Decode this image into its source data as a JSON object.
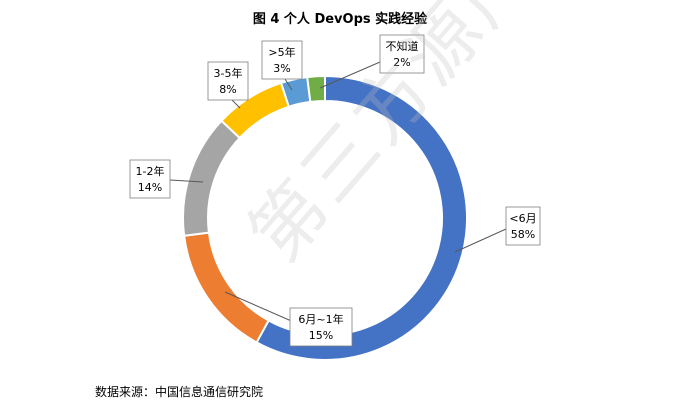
{
  "title": "图 4 个人 DevOps 实践经验",
  "source": "数据来源：中国信息通信研究院",
  "watermark": "第三方源产业联盟",
  "chart_data": {
    "type": "pie",
    "variant": "doughnut",
    "title": "图 4 个人 DevOps 实践经验",
    "categories": [
      "<6月",
      "6月~1年",
      "1-2年",
      "3-5年",
      ">5年",
      "不知道"
    ],
    "values": [
      58,
      15,
      14,
      8,
      3,
      2
    ],
    "value_labels": [
      "58%",
      "15%",
      "14%",
      "8%",
      "3%",
      "2%"
    ],
    "colors": [
      "#4472C4",
      "#ED7D31",
      "#A5A5A5",
      "#FFC000",
      "#5B9BD5",
      "#70AD47"
    ]
  }
}
